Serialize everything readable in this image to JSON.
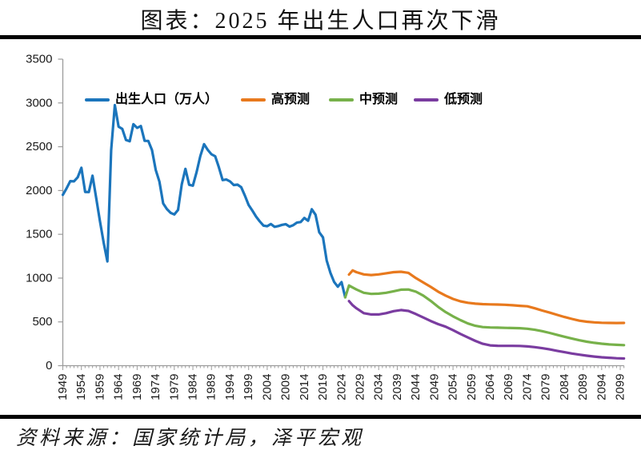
{
  "page": {
    "source": "资料来源：国家统计局，泽平宏观"
  },
  "chart_data": {
    "type": "line",
    "title": "图表：2025 年出生人口再次下滑",
    "xlabel": "",
    "ylabel": "",
    "xlim": [
      1949,
      2100
    ],
    "ylim": [
      0,
      3500
    ],
    "grid": false,
    "legend_position": "top",
    "yticks": [
      0,
      500,
      1000,
      1500,
      2000,
      2500,
      3000,
      3500
    ],
    "xtick_labels": [
      "1949",
      "1954",
      "1959",
      "1964",
      "1969",
      "1974",
      "1979",
      "1984",
      "1989",
      "1994",
      "1999",
      "2004",
      "2009",
      "2014",
      "2019",
      "2024",
      "2029",
      "2034",
      "2039",
      "2044",
      "2049",
      "2054",
      "2059",
      "2064",
      "2069",
      "2074",
      "2079",
      "2084",
      "2089",
      "2094",
      "2099"
    ],
    "colors": {
      "axis": "#9b9b9b",
      "tick_text": "#1a1a1a",
      "divider": "#000000"
    },
    "series": [
      {
        "id": "births-actual",
        "name": "出生人口（万人）",
        "color": "#1B75BC",
        "points": [
          [
            1949,
            1950
          ],
          [
            1950,
            2023
          ],
          [
            1951,
            2107
          ],
          [
            1952,
            2105
          ],
          [
            1953,
            2151
          ],
          [
            1954,
            2260
          ],
          [
            1955,
            1984
          ],
          [
            1956,
            1982
          ],
          [
            1957,
            2169
          ],
          [
            1958,
            1909
          ],
          [
            1959,
            1650
          ],
          [
            1960,
            1402
          ],
          [
            1961,
            1190
          ],
          [
            1962,
            2460
          ],
          [
            1963,
            2975
          ],
          [
            1964,
            2729
          ],
          [
            1965,
            2704
          ],
          [
            1966,
            2577
          ],
          [
            1967,
            2563
          ],
          [
            1968,
            2757
          ],
          [
            1969,
            2715
          ],
          [
            1970,
            2736
          ],
          [
            1971,
            2567
          ],
          [
            1972,
            2566
          ],
          [
            1973,
            2463
          ],
          [
            1974,
            2235
          ],
          [
            1975,
            2102
          ],
          [
            1976,
            1853
          ],
          [
            1977,
            1789
          ],
          [
            1978,
            1745
          ],
          [
            1979,
            1727
          ],
          [
            1980,
            1779
          ],
          [
            1981,
            2069
          ],
          [
            1982,
            2247
          ],
          [
            1983,
            2065
          ],
          [
            1984,
            2055
          ],
          [
            1985,
            2211
          ],
          [
            1986,
            2393
          ],
          [
            1987,
            2529
          ],
          [
            1988,
            2464
          ],
          [
            1989,
            2414
          ],
          [
            1990,
            2391
          ],
          [
            1991,
            2265
          ],
          [
            1992,
            2119
          ],
          [
            1993,
            2126
          ],
          [
            1994,
            2104
          ],
          [
            1995,
            2063
          ],
          [
            1996,
            2067
          ],
          [
            1997,
            2038
          ],
          [
            1998,
            1942
          ],
          [
            1999,
            1834
          ],
          [
            2000,
            1771
          ],
          [
            2001,
            1702
          ],
          [
            2002,
            1647
          ],
          [
            2003,
            1599
          ],
          [
            2004,
            1593
          ],
          [
            2005,
            1617
          ],
          [
            2006,
            1585
          ],
          [
            2007,
            1594
          ],
          [
            2008,
            1608
          ],
          [
            2009,
            1615
          ],
          [
            2010,
            1588
          ],
          [
            2011,
            1604
          ],
          [
            2012,
            1635
          ],
          [
            2013,
            1640
          ],
          [
            2014,
            1687
          ],
          [
            2015,
            1655
          ],
          [
            2016,
            1786
          ],
          [
            2017,
            1723
          ],
          [
            2018,
            1523
          ],
          [
            2019,
            1465
          ],
          [
            2020,
            1202
          ],
          [
            2021,
            1062
          ],
          [
            2022,
            956
          ],
          [
            2023,
            902
          ],
          [
            2024,
            954
          ],
          [
            2025,
            780
          ]
        ]
      },
      {
        "id": "high-forecast",
        "name": "高预测",
        "color": "#E8791D",
        "points": [
          [
            2026,
            1040
          ],
          [
            2027,
            1088
          ],
          [
            2028,
            1068
          ],
          [
            2030,
            1042
          ],
          [
            2032,
            1035
          ],
          [
            2034,
            1042
          ],
          [
            2036,
            1055
          ],
          [
            2038,
            1068
          ],
          [
            2040,
            1072
          ],
          [
            2042,
            1060
          ],
          [
            2044,
            1000
          ],
          [
            2046,
            950
          ],
          [
            2048,
            900
          ],
          [
            2050,
            845
          ],
          [
            2052,
            800
          ],
          [
            2054,
            762
          ],
          [
            2056,
            735
          ],
          [
            2058,
            718
          ],
          [
            2060,
            708
          ],
          [
            2062,
            703
          ],
          [
            2064,
            700
          ],
          [
            2066,
            698
          ],
          [
            2068,
            695
          ],
          [
            2070,
            690
          ],
          [
            2072,
            684
          ],
          [
            2074,
            678
          ],
          [
            2076,
            655
          ],
          [
            2078,
            630
          ],
          [
            2080,
            606
          ],
          [
            2082,
            580
          ],
          [
            2084,
            556
          ],
          [
            2086,
            534
          ],
          [
            2088,
            514
          ],
          [
            2090,
            502
          ],
          [
            2092,
            495
          ],
          [
            2094,
            490
          ],
          [
            2096,
            488
          ],
          [
            2098,
            487
          ],
          [
            2100,
            488
          ]
        ]
      },
      {
        "id": "mid-forecast",
        "name": "中预测",
        "color": "#77B14A",
        "points": [
          [
            2025,
            780
          ],
          [
            2026,
            915
          ],
          [
            2027,
            893
          ],
          [
            2028,
            870
          ],
          [
            2030,
            832
          ],
          [
            2032,
            820
          ],
          [
            2034,
            822
          ],
          [
            2036,
            832
          ],
          [
            2038,
            850
          ],
          [
            2040,
            868
          ],
          [
            2042,
            870
          ],
          [
            2044,
            845
          ],
          [
            2046,
            800
          ],
          [
            2048,
            740
          ],
          [
            2050,
            672
          ],
          [
            2052,
            612
          ],
          [
            2054,
            563
          ],
          [
            2056,
            520
          ],
          [
            2058,
            482
          ],
          [
            2060,
            455
          ],
          [
            2062,
            441
          ],
          [
            2064,
            436
          ],
          [
            2066,
            434
          ],
          [
            2068,
            432
          ],
          [
            2070,
            430
          ],
          [
            2072,
            428
          ],
          [
            2074,
            422
          ],
          [
            2076,
            410
          ],
          [
            2078,
            394
          ],
          [
            2080,
            374
          ],
          [
            2082,
            352
          ],
          [
            2084,
            330
          ],
          [
            2086,
            309
          ],
          [
            2088,
            290
          ],
          [
            2090,
            274
          ],
          [
            2092,
            261
          ],
          [
            2094,
            251
          ],
          [
            2096,
            243
          ],
          [
            2098,
            238
          ],
          [
            2100,
            235
          ]
        ]
      },
      {
        "id": "low-forecast",
        "name": "低预测",
        "color": "#7A3CA0",
        "points": [
          [
            2026,
            737
          ],
          [
            2027,
            690
          ],
          [
            2028,
            655
          ],
          [
            2030,
            600
          ],
          [
            2032,
            585
          ],
          [
            2034,
            585
          ],
          [
            2036,
            600
          ],
          [
            2038,
            622
          ],
          [
            2040,
            635
          ],
          [
            2042,
            625
          ],
          [
            2044,
            590
          ],
          [
            2046,
            550
          ],
          [
            2048,
            510
          ],
          [
            2050,
            475
          ],
          [
            2052,
            445
          ],
          [
            2054,
            405
          ],
          [
            2056,
            362
          ],
          [
            2058,
            322
          ],
          [
            2060,
            283
          ],
          [
            2062,
            250
          ],
          [
            2064,
            232
          ],
          [
            2066,
            227
          ],
          [
            2068,
            226
          ],
          [
            2070,
            226
          ],
          [
            2072,
            225
          ],
          [
            2074,
            220
          ],
          [
            2076,
            212
          ],
          [
            2078,
            200
          ],
          [
            2080,
            186
          ],
          [
            2082,
            170
          ],
          [
            2084,
            154
          ],
          [
            2086,
            139
          ],
          [
            2088,
            126
          ],
          [
            2090,
            114
          ],
          [
            2092,
            104
          ],
          [
            2094,
            96
          ],
          [
            2096,
            90
          ],
          [
            2098,
            85
          ],
          [
            2100,
            82
          ]
        ]
      }
    ]
  }
}
